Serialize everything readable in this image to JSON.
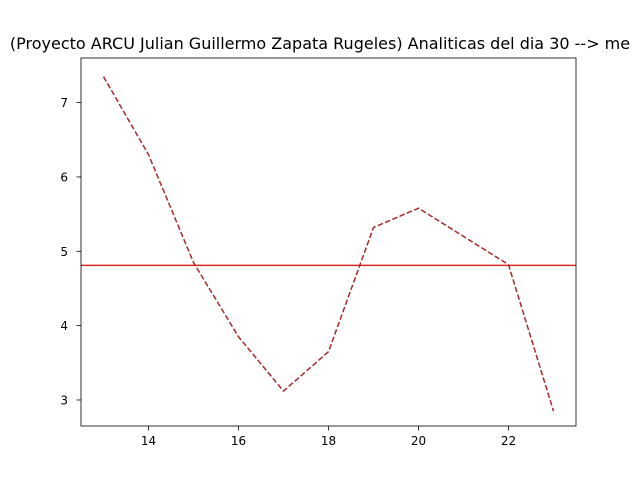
{
  "chart_data": {
    "type": "line",
    "title": "(Proyecto ARCU Julian Guillermo Zapata Rugeles) Analiticas del  dia 30  --> me",
    "xlabel": "",
    "ylabel": "",
    "xlim": [
      12.5,
      23.5
    ],
    "ylim": [
      2.65,
      7.6
    ],
    "xticks": [
      14,
      16,
      18,
      20,
      22
    ],
    "yticks": [
      3,
      4,
      5,
      6,
      7
    ],
    "grid": false,
    "series": [
      {
        "style": "dashed",
        "color": "#a52a2a",
        "x": [
          13,
          14,
          15,
          16,
          17,
          18,
          19,
          20,
          21,
          22,
          23
        ],
        "y": [
          7.35,
          6.3,
          4.85,
          3.85,
          3.12,
          3.65,
          5.32,
          5.58,
          5.2,
          4.82,
          2.85
        ]
      }
    ],
    "hlines": [
      {
        "y": 4.81,
        "color": "#d62728"
      }
    ]
  }
}
